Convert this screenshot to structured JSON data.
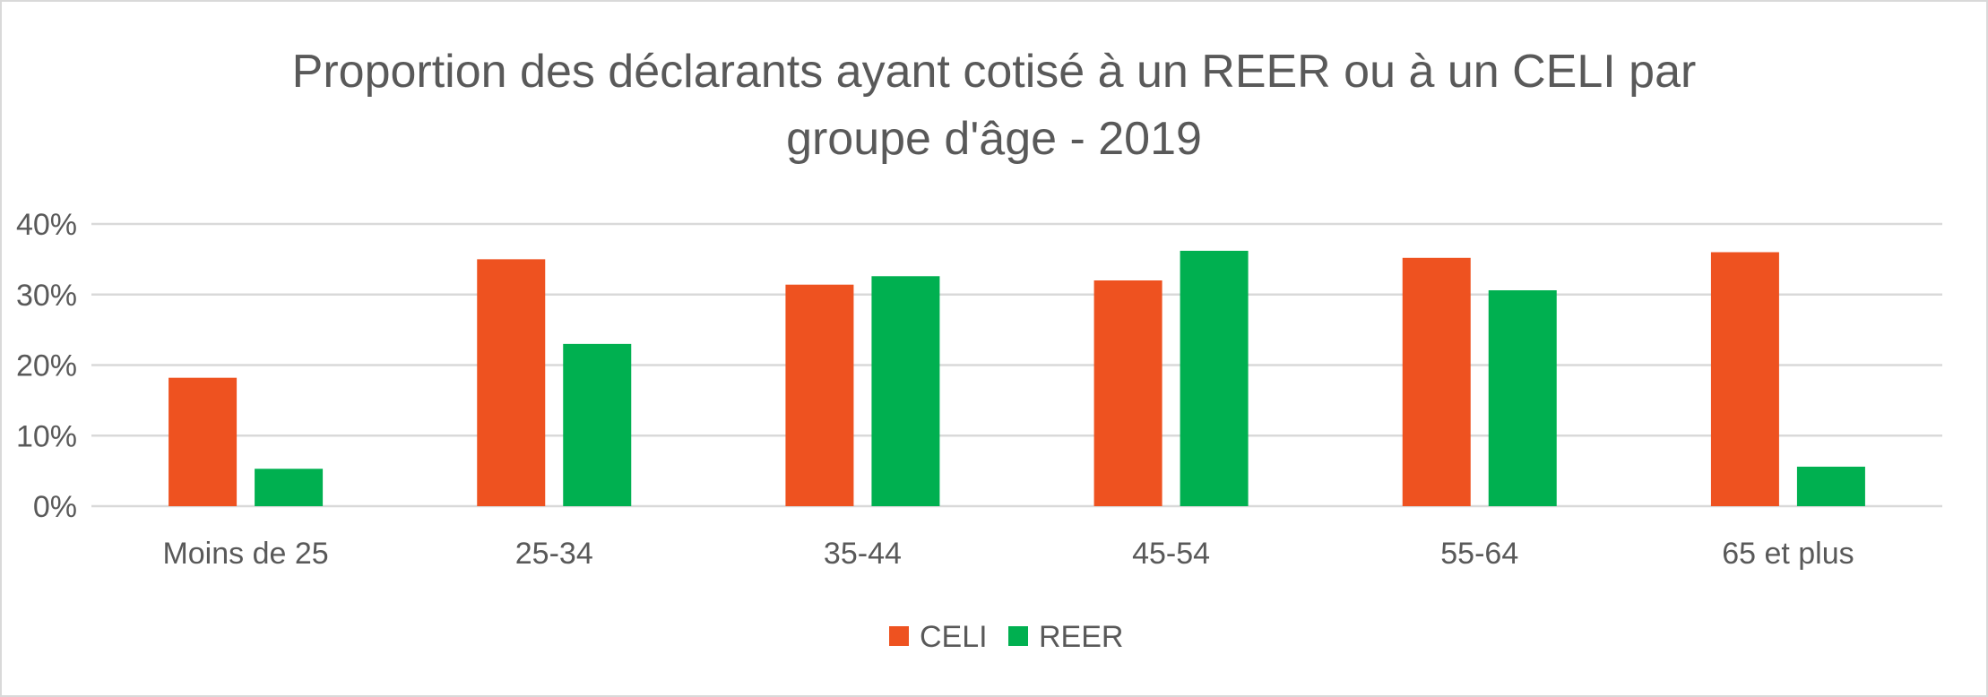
{
  "chart_data": {
    "type": "bar",
    "title": "Proportion des déclarants ayant cotisé à un REER ou à un CELI par groupe d'âge - 2019",
    "title_lines": [
      "Proportion des déclarants ayant cotisé à un REER ou à un CELI par",
      "groupe d'âge - 2019"
    ],
    "xlabel": "",
    "ylabel": "",
    "categories": [
      "Moins de 25",
      "25-34",
      "35-44",
      "45-54",
      "55-64",
      "65 et plus"
    ],
    "series": [
      {
        "name": "CELI",
        "color": "#EE5220",
        "values": [
          18.2,
          35.0,
          31.4,
          32.0,
          35.2,
          36.0
        ]
      },
      {
        "name": "REER",
        "color": "#00B050",
        "values": [
          5.3,
          23.0,
          32.6,
          36.2,
          30.6,
          5.6
        ]
      }
    ],
    "ylim": [
      0,
      40
    ],
    "yticks": [
      0,
      10,
      20,
      30,
      40
    ],
    "ytick_labels": [
      "0%",
      "10%",
      "20%",
      "30%",
      "40%"
    ],
    "value_format": "percent",
    "grid": true,
    "legend_position": "bottom"
  }
}
